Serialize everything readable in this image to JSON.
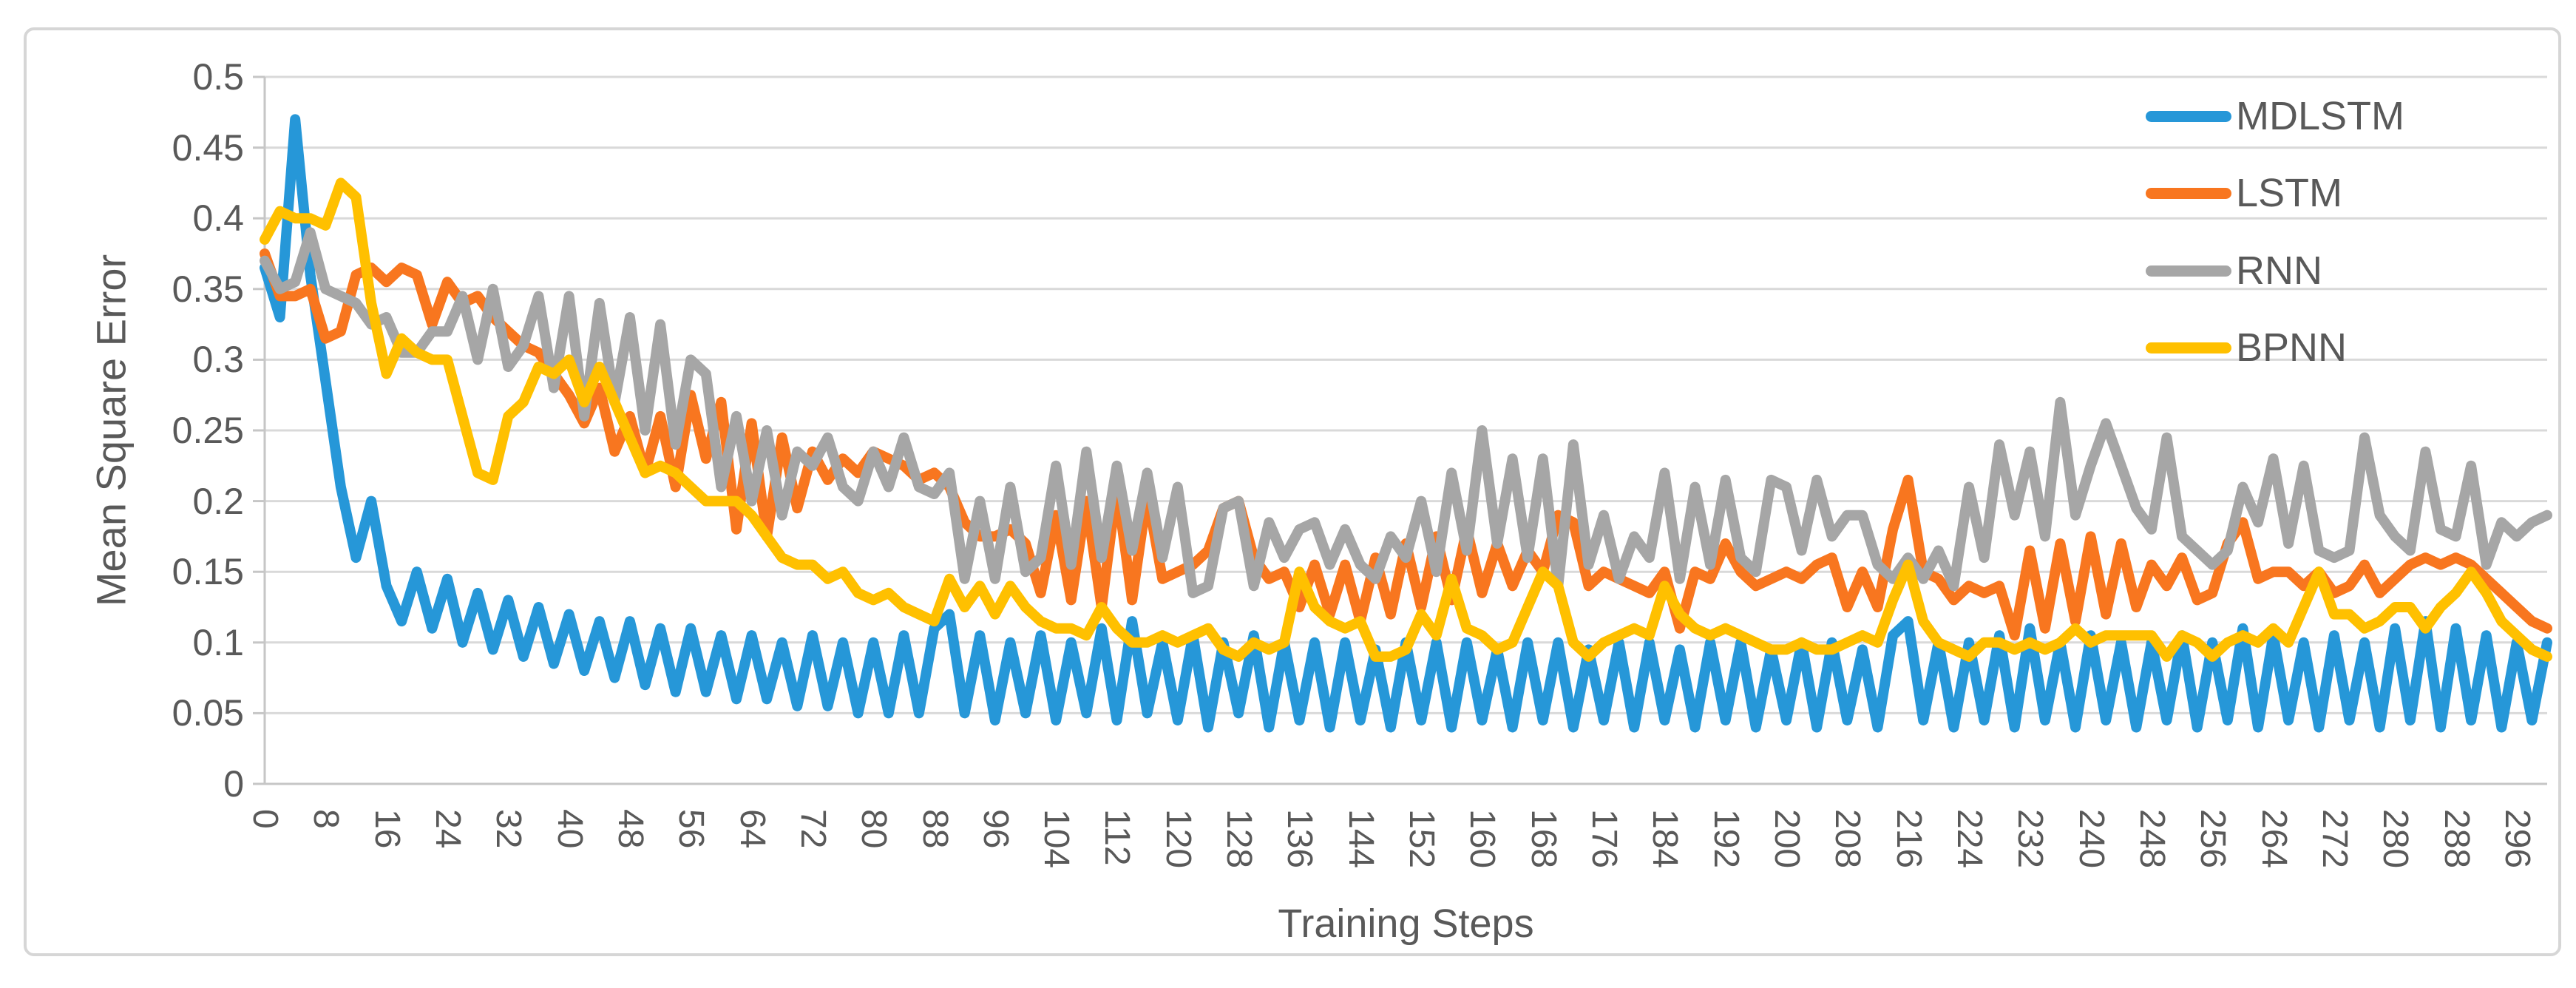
{
  "figure": {
    "background": "#ffffff",
    "border_color": "#d6d6d6",
    "grid_color": "#d9d9d9",
    "axis_line_color": "#c6c6c6",
    "text_color": "#595959"
  },
  "chart_data": {
    "type": "line",
    "title": "",
    "xlabel": "Training Steps",
    "ylabel": "Mean Square Error",
    "xlim": [
      0,
      300
    ],
    "ylim": [
      0,
      0.5
    ],
    "grid": true,
    "legend_position": "top-right",
    "x_start": 0,
    "x_step": 2,
    "y_tick_values": [
      0,
      0.05,
      0.1,
      0.15,
      0.2,
      0.25,
      0.3,
      0.35,
      0.4,
      0.45,
      0.5
    ],
    "y_tick_labels": [
      "0",
      "0.05",
      "0.1",
      "0.15",
      "0.2",
      "0.25",
      "0.3",
      "0.35",
      "0.4",
      "0.45",
      "0.5"
    ],
    "x_tick_values": [
      0,
      8,
      16,
      24,
      32,
      40,
      48,
      56,
      64,
      72,
      80,
      88,
      96,
      104,
      112,
      120,
      128,
      136,
      144,
      152,
      160,
      168,
      176,
      184,
      192,
      200,
      208,
      216,
      224,
      232,
      240,
      248,
      256,
      264,
      272,
      280,
      288,
      296
    ],
    "series": [
      {
        "name": "MDLSTM",
        "color": "#2697d8",
        "values": [
          0.365,
          0.33,
          0.47,
          0.36,
          0.285,
          0.21,
          0.16,
          0.2,
          0.14,
          0.115,
          0.15,
          0.11,
          0.145,
          0.1,
          0.135,
          0.095,
          0.13,
          0.09,
          0.125,
          0.085,
          0.12,
          0.08,
          0.115,
          0.075,
          0.115,
          0.07,
          0.11,
          0.065,
          0.11,
          0.065,
          0.105,
          0.06,
          0.105,
          0.06,
          0.1,
          0.055,
          0.105,
          0.055,
          0.1,
          0.05,
          0.1,
          0.05,
          0.105,
          0.05,
          0.11,
          0.12,
          0.05,
          0.105,
          0.045,
          0.1,
          0.05,
          0.105,
          0.045,
          0.1,
          0.05,
          0.11,
          0.045,
          0.115,
          0.05,
          0.1,
          0.045,
          0.105,
          0.04,
          0.1,
          0.05,
          0.105,
          0.04,
          0.1,
          0.045,
          0.1,
          0.04,
          0.1,
          0.045,
          0.095,
          0.04,
          0.1,
          0.045,
          0.1,
          0.04,
          0.1,
          0.045,
          0.095,
          0.04,
          0.1,
          0.045,
          0.1,
          0.04,
          0.095,
          0.045,
          0.1,
          0.04,
          0.1,
          0.045,
          0.095,
          0.04,
          0.1,
          0.045,
          0.1,
          0.04,
          0.095,
          0.045,
          0.1,
          0.04,
          0.1,
          0.045,
          0.095,
          0.04,
          0.105,
          0.115,
          0.045,
          0.1,
          0.04,
          0.1,
          0.045,
          0.105,
          0.04,
          0.11,
          0.045,
          0.1,
          0.04,
          0.105,
          0.045,
          0.1,
          0.04,
          0.1,
          0.045,
          0.105,
          0.04,
          0.1,
          0.045,
          0.11,
          0.04,
          0.105,
          0.045,
          0.1,
          0.04,
          0.105,
          0.045,
          0.1,
          0.04,
          0.11,
          0.045,
          0.115,
          0.04,
          0.11,
          0.045,
          0.105,
          0.04,
          0.1,
          0.045,
          0.1
        ]
      },
      {
        "name": "LSTM",
        "color": "#f8761f",
        "values": [
          0.375,
          0.345,
          0.345,
          0.35,
          0.315,
          0.32,
          0.36,
          0.365,
          0.355,
          0.365,
          0.36,
          0.325,
          0.355,
          0.34,
          0.345,
          0.33,
          0.32,
          0.31,
          0.305,
          0.29,
          0.275,
          0.255,
          0.28,
          0.235,
          0.26,
          0.22,
          0.26,
          0.21,
          0.275,
          0.23,
          0.27,
          0.18,
          0.255,
          0.175,
          0.245,
          0.195,
          0.235,
          0.215,
          0.23,
          0.22,
          0.235,
          0.23,
          0.225,
          0.215,
          0.22,
          0.21,
          0.185,
          0.175,
          0.175,
          0.18,
          0.17,
          0.135,
          0.19,
          0.13,
          0.2,
          0.125,
          0.21,
          0.13,
          0.205,
          0.145,
          0.15,
          0.155,
          0.165,
          0.195,
          0.2,
          0.16,
          0.145,
          0.15,
          0.125,
          0.155,
          0.12,
          0.155,
          0.115,
          0.16,
          0.12,
          0.17,
          0.125,
          0.175,
          0.13,
          0.18,
          0.135,
          0.17,
          0.14,
          0.165,
          0.15,
          0.19,
          0.185,
          0.14,
          0.15,
          0.145,
          0.14,
          0.135,
          0.15,
          0.11,
          0.15,
          0.145,
          0.17,
          0.15,
          0.14,
          0.145,
          0.15,
          0.145,
          0.155,
          0.16,
          0.125,
          0.15,
          0.125,
          0.18,
          0.215,
          0.15,
          0.145,
          0.13,
          0.14,
          0.135,
          0.14,
          0.105,
          0.165,
          0.11,
          0.17,
          0.115,
          0.175,
          0.12,
          0.17,
          0.125,
          0.155,
          0.14,
          0.16,
          0.13,
          0.135,
          0.17,
          0.185,
          0.145,
          0.15,
          0.15,
          0.14,
          0.15,
          0.135,
          0.14,
          0.155,
          0.135,
          0.145,
          0.155,
          0.16,
          0.155,
          0.16,
          0.155,
          0.145,
          0.135,
          0.125,
          0.115,
          0.11
        ]
      },
      {
        "name": "RNN",
        "color": "#a6a6a6",
        "values": [
          0.37,
          0.35,
          0.355,
          0.39,
          0.35,
          0.345,
          0.34,
          0.325,
          0.33,
          0.305,
          0.305,
          0.32,
          0.32,
          0.345,
          0.3,
          0.35,
          0.295,
          0.31,
          0.345,
          0.28,
          0.345,
          0.26,
          0.34,
          0.27,
          0.33,
          0.25,
          0.325,
          0.24,
          0.3,
          0.29,
          0.21,
          0.26,
          0.2,
          0.25,
          0.19,
          0.235,
          0.225,
          0.245,
          0.21,
          0.2,
          0.235,
          0.21,
          0.245,
          0.21,
          0.205,
          0.22,
          0.145,
          0.2,
          0.145,
          0.21,
          0.15,
          0.16,
          0.225,
          0.155,
          0.235,
          0.16,
          0.225,
          0.165,
          0.22,
          0.16,
          0.21,
          0.135,
          0.14,
          0.195,
          0.2,
          0.14,
          0.185,
          0.16,
          0.18,
          0.185,
          0.155,
          0.18,
          0.155,
          0.145,
          0.175,
          0.16,
          0.2,
          0.15,
          0.22,
          0.165,
          0.25,
          0.17,
          0.23,
          0.16,
          0.23,
          0.14,
          0.24,
          0.155,
          0.19,
          0.145,
          0.175,
          0.16,
          0.22,
          0.145,
          0.21,
          0.155,
          0.215,
          0.16,
          0.15,
          0.215,
          0.21,
          0.165,
          0.215,
          0.175,
          0.19,
          0.19,
          0.155,
          0.145,
          0.16,
          0.145,
          0.165,
          0.14,
          0.21,
          0.16,
          0.24,
          0.19,
          0.235,
          0.175,
          0.27,
          0.19,
          0.225,
          0.255,
          0.225,
          0.195,
          0.18,
          0.245,
          0.175,
          0.165,
          0.155,
          0.165,
          0.21,
          0.185,
          0.23,
          0.17,
          0.225,
          0.165,
          0.16,
          0.165,
          0.245,
          0.19,
          0.175,
          0.165,
          0.235,
          0.18,
          0.175,
          0.225,
          0.155,
          0.185,
          0.175,
          0.185,
          0.19
        ]
      },
      {
        "name": "BPNN",
        "color": "#ffc000",
        "values": [
          0.385,
          0.405,
          0.4,
          0.4,
          0.395,
          0.425,
          0.415,
          0.34,
          0.29,
          0.315,
          0.305,
          0.3,
          0.3,
          0.26,
          0.22,
          0.215,
          0.26,
          0.27,
          0.295,
          0.29,
          0.3,
          0.27,
          0.295,
          0.27,
          0.245,
          0.22,
          0.225,
          0.22,
          0.21,
          0.2,
          0.2,
          0.2,
          0.19,
          0.175,
          0.16,
          0.155,
          0.155,
          0.145,
          0.15,
          0.135,
          0.13,
          0.135,
          0.125,
          0.12,
          0.115,
          0.145,
          0.125,
          0.14,
          0.12,
          0.14,
          0.125,
          0.115,
          0.11,
          0.11,
          0.105,
          0.125,
          0.11,
          0.1,
          0.1,
          0.105,
          0.1,
          0.105,
          0.11,
          0.095,
          0.09,
          0.1,
          0.095,
          0.1,
          0.15,
          0.125,
          0.115,
          0.11,
          0.115,
          0.09,
          0.09,
          0.095,
          0.12,
          0.105,
          0.145,
          0.11,
          0.105,
          0.095,
          0.1,
          0.125,
          0.15,
          0.14,
          0.1,
          0.09,
          0.1,
          0.105,
          0.11,
          0.105,
          0.14,
          0.12,
          0.11,
          0.105,
          0.11,
          0.105,
          0.1,
          0.095,
          0.095,
          0.1,
          0.095,
          0.095,
          0.1,
          0.105,
          0.1,
          0.13,
          0.155,
          0.115,
          0.1,
          0.095,
          0.09,
          0.1,
          0.1,
          0.095,
          0.1,
          0.095,
          0.1,
          0.11,
          0.1,
          0.105,
          0.105,
          0.105,
          0.105,
          0.09,
          0.105,
          0.1,
          0.09,
          0.1,
          0.105,
          0.1,
          0.11,
          0.1,
          0.125,
          0.15,
          0.12,
          0.12,
          0.11,
          0.115,
          0.125,
          0.125,
          0.11,
          0.125,
          0.135,
          0.15,
          0.135,
          0.115,
          0.105,
          0.095,
          0.09
        ]
      }
    ]
  }
}
